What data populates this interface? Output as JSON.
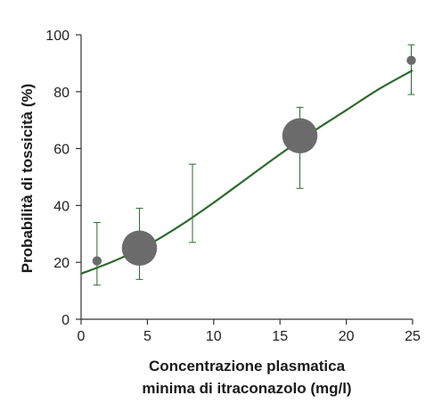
{
  "chart_data": {
    "type": "scatter",
    "xlabel_lines": [
      "Concentrazione plasmatica",
      "minima di itraconazolo (mg/l)"
    ],
    "ylabel": "Probabilità di tossicità (%)",
    "xlim": [
      0,
      25
    ],
    "ylim": [
      0,
      100
    ],
    "xticks": [
      0,
      5,
      10,
      15,
      20,
      25
    ],
    "yticks": [
      0,
      20,
      40,
      60,
      80,
      100
    ],
    "grid": false,
    "colors": {
      "points": "#6b6b6b",
      "curve": "#2d6a2d",
      "error_bars": "#2d6a2d",
      "axes": "#333333"
    },
    "points": [
      {
        "x": 1.2,
        "y": 20.5,
        "y_low": 12,
        "y_high": 34,
        "size": "small",
        "size_rel": 1.0
      },
      {
        "x": 4.4,
        "y": 25,
        "y_low": 14,
        "y_high": 39,
        "size": "large",
        "size_rel": 3.8
      },
      {
        "x": 8.4,
        "y": null,
        "y_low": 27,
        "y_high": 54.5,
        "size": "none",
        "size_rel": 0
      },
      {
        "x": 16.5,
        "y": 64.5,
        "y_low": 46,
        "y_high": 74.5,
        "size": "large",
        "size_rel": 3.8
      },
      {
        "x": 24.9,
        "y": 91,
        "y_low": 79,
        "y_high": 96.5,
        "size": "small",
        "size_rel": 1.0
      }
    ],
    "curve": {
      "type": "logistic",
      "x": [
        0,
        2.5,
        5,
        7.5,
        10,
        12.5,
        15,
        17.5,
        20,
        22.5,
        25
      ],
      "y": [
        16,
        20.5,
        26,
        33,
        41,
        49.5,
        58,
        66,
        73.5,
        81,
        87.5
      ]
    }
  }
}
